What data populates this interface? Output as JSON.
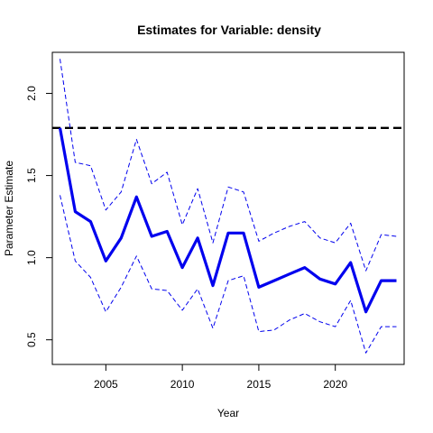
{
  "chart_data": {
    "type": "line",
    "title": "Estimates for Variable: density",
    "xlabel": "Year",
    "ylabel": "Parameter Estimate",
    "xlim": [
      2001.5,
      2024.5
    ],
    "ylim": [
      0.35,
      2.25
    ],
    "x_ticks": [
      2005,
      2010,
      2015,
      2020
    ],
    "x_tick_labels": [
      "2005",
      "2010",
      "2015",
      "2020"
    ],
    "y_ticks": [
      0.5,
      1.0,
      1.5,
      2.0
    ],
    "y_tick_labels": [
      "0.5",
      "1.0",
      "1.5",
      "2.0"
    ],
    "grid": false,
    "reference_line": {
      "y": 1.79,
      "style": "dashed",
      "color": "#000000"
    },
    "x": [
      2002,
      2003,
      2004,
      2005,
      2006,
      2007,
      2008,
      2009,
      2010,
      2011,
      2012,
      2013,
      2014,
      2015,
      2016,
      2017,
      2018,
      2019,
      2020,
      2021,
      2022,
      2023,
      2024
    ],
    "series": [
      {
        "role": "estimate",
        "color": "#0000ee",
        "style": "solid-thick",
        "values": [
          1.79,
          1.28,
          1.22,
          0.98,
          1.12,
          1.37,
          1.13,
          1.16,
          0.94,
          1.12,
          0.83,
          1.15,
          1.15,
          0.82,
          0.86,
          0.9,
          0.94,
          0.87,
          0.84,
          0.97,
          0.67,
          0.86,
          0.86
        ]
      },
      {
        "role": "upper",
        "color": "#0000ee",
        "style": "dashed",
        "values": [
          2.21,
          1.58,
          1.56,
          1.29,
          1.4,
          1.72,
          1.45,
          1.52,
          1.2,
          1.42,
          1.09,
          1.43,
          1.4,
          1.1,
          1.15,
          1.19,
          1.22,
          1.12,
          1.09,
          1.21,
          0.92,
          1.14,
          1.13
        ]
      },
      {
        "role": "lower",
        "color": "#0000ee",
        "style": "dashed",
        "values": [
          1.38,
          0.98,
          0.88,
          0.67,
          0.82,
          1.01,
          0.81,
          0.8,
          0.68,
          0.81,
          0.57,
          0.86,
          0.89,
          0.55,
          0.56,
          0.62,
          0.66,
          0.61,
          0.58,
          0.74,
          0.42,
          0.58,
          0.58
        ]
      }
    ]
  }
}
